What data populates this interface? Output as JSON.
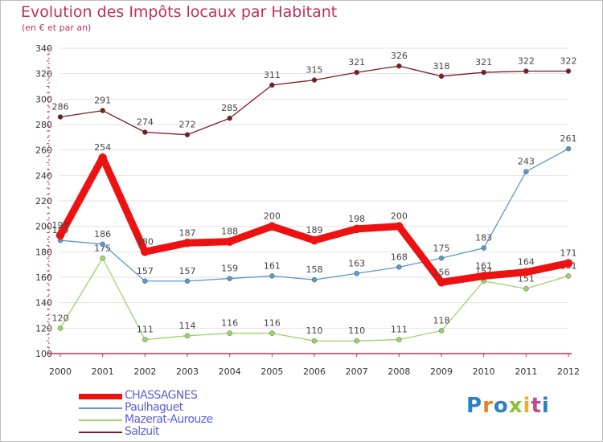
{
  "chart_data": {
    "type": "line",
    "title": "Evolution des Impôts locaux par Habitant",
    "subtitle": "(en € et par an)",
    "xlabel": "",
    "ylabel": "",
    "x": [
      "2000",
      "2001",
      "2002",
      "2003",
      "2004",
      "2005",
      "2006",
      "2007",
      "2008",
      "2009",
      "2010",
      "2011",
      "2012"
    ],
    "ylim": [
      100,
      340
    ],
    "yticks": [
      100,
      120,
      140,
      160,
      180,
      200,
      220,
      240,
      260,
      280,
      300,
      320,
      340
    ],
    "grid": true,
    "series": [
      {
        "name": "Salzuit",
        "color": "#7b1c25",
        "values": [
          286,
          291,
          274,
          272,
          285,
          311,
          315,
          321,
          326,
          318,
          321,
          322,
          322
        ]
      },
      {
        "name": "Mazerat-Aurouze",
        "color": "#9bd46a",
        "values": [
          120,
          175,
          111,
          114,
          116,
          116,
          110,
          110,
          111,
          118,
          157,
          151,
          161
        ]
      },
      {
        "name": "Paulhaguet",
        "color": "#5b98cc",
        "values": [
          189,
          186,
          157,
          157,
          159,
          161,
          158,
          163,
          168,
          175,
          183,
          243,
          261
        ]
      },
      {
        "name": "CHASSAGNES",
        "color": "#ee1111",
        "values": [
          193,
          254,
          180,
          187,
          188,
          200,
          189,
          198,
          200,
          156,
          161,
          164,
          171
        ]
      }
    ]
  },
  "legend": [
    {
      "name": "CHASSAGNES",
      "color": "#ee1111",
      "text_color": "#5a5fe0"
    },
    {
      "name": "Paulhaguet",
      "color": "#5b98cc",
      "text_color": "#5a5fe0"
    },
    {
      "name": "Mazerat-Aurouze",
      "color": "#9bd46a",
      "text_color": "#5a5fe0"
    },
    {
      "name": "Salzuit",
      "color": "#7b1c25",
      "text_color": "#5a5fe0"
    }
  ],
  "logo": {
    "p1": "P",
    "p2": "r",
    "p3": "o",
    "p4": "x",
    "p5": "i",
    "p6": "t",
    "p7": "i"
  }
}
